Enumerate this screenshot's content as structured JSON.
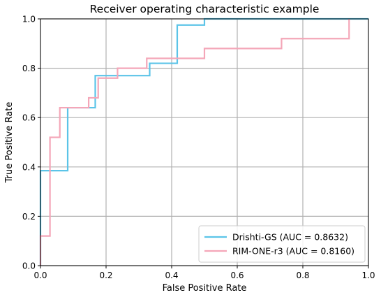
{
  "chart_data": {
    "type": "line",
    "title": "Receiver operating characteristic example",
    "xlabel": "False Positive Rate",
    "ylabel": "True Positive Rate",
    "xlim": [
      0.0,
      1.0
    ],
    "ylim": [
      0.0,
      1.0
    ],
    "xticks": [
      "0.0",
      "0.2",
      "0.4",
      "0.6",
      "0.8",
      "1.0"
    ],
    "yticks": [
      "0.0",
      "0.2",
      "0.4",
      "0.6",
      "0.8",
      "1.0"
    ],
    "grid": true,
    "legend_position": "lower-right",
    "series": [
      {
        "name": "Drishti-GS (AUC = 0.8632)",
        "color": "#5bc4e8",
        "x": [
          0.0,
          0.0,
          0.083,
          0.083,
          0.167,
          0.167,
          0.333,
          0.333,
          0.417,
          0.417,
          0.5,
          0.5,
          1.0
        ],
        "y": [
          0.0,
          0.385,
          0.385,
          0.64,
          0.64,
          0.77,
          0.77,
          0.82,
          0.82,
          0.975,
          0.975,
          1.0,
          1.0
        ]
      },
      {
        "name": "RIM-ONE-r3 (AUC = 0.8160)",
        "color": "#f4a6b8",
        "x": [
          0.0,
          0.0,
          0.029,
          0.029,
          0.059,
          0.059,
          0.147,
          0.147,
          0.176,
          0.176,
          0.235,
          0.235,
          0.324,
          0.324,
          0.5,
          0.5,
          0.735,
          0.735,
          0.941,
          0.941
        ],
        "y": [
          0.0,
          0.12,
          0.12,
          0.52,
          0.52,
          0.64,
          0.64,
          0.68,
          0.68,
          0.76,
          0.76,
          0.8,
          0.8,
          0.84,
          0.84,
          0.88,
          0.88,
          0.92,
          0.92,
          1.0
        ]
      }
    ]
  }
}
